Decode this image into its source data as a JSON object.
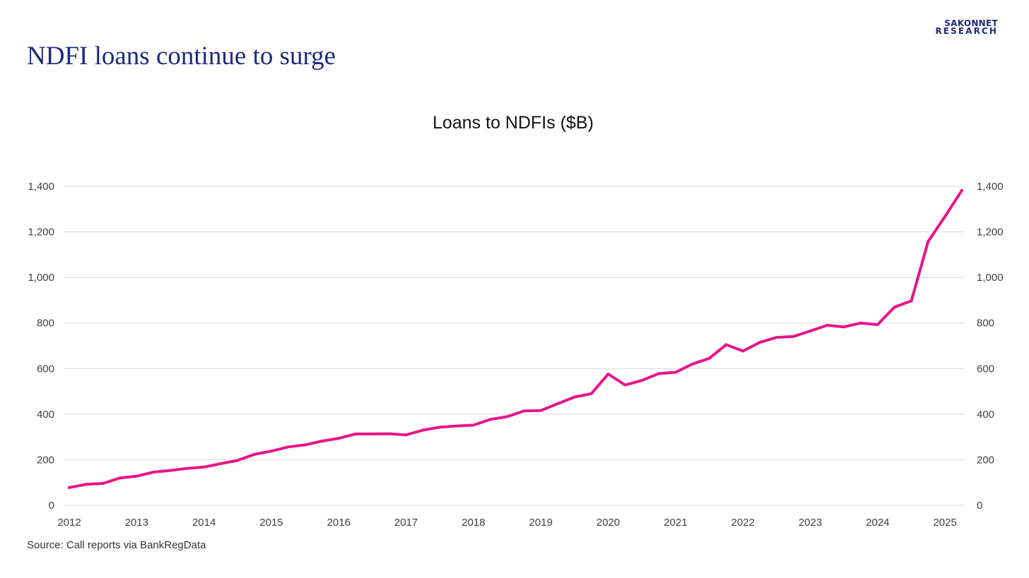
{
  "page": {
    "headline": "NDFI loans continue to surge",
    "logo_line1": "SAKONNET",
    "logo_line2": "RESEARCH",
    "source": "Source: Call reports via BankRegData"
  },
  "colors": {
    "line": "#e6168c",
    "grid": "#d9d9d9",
    "headline": "#1f2a7a",
    "tick_text": "#404040"
  },
  "chart_data": {
    "type": "line",
    "title": "Loans to NDFIs ($B)",
    "xlabel": "",
    "ylabel": "",
    "ylim": [
      0,
      1400
    ],
    "xlim": [
      2012,
      2025.25
    ],
    "y_ticks": [
      0,
      200,
      400,
      600,
      800,
      1000,
      1200,
      1400
    ],
    "y_tick_labels": [
      "0",
      "200",
      "400",
      "600",
      "800",
      "1,000",
      "1,200",
      "1,400"
    ],
    "x_ticks": [
      2012,
      2013,
      2014,
      2015,
      2016,
      2017,
      2018,
      2019,
      2020,
      2021,
      2022,
      2023,
      2024,
      2025
    ],
    "x_tick_labels": [
      "2012",
      "2013",
      "2014",
      "2015",
      "2016",
      "2017",
      "2018",
      "2019",
      "2020",
      "2021",
      "2022",
      "2023",
      "2024",
      "2025"
    ],
    "grid": true,
    "secondary_y_axis": true,
    "series": [
      {
        "name": "Loans to NDFIs ($B)",
        "x": [
          2012,
          2012.25,
          2012.5,
          2012.75,
          2013,
          2013.25,
          2013.5,
          2013.75,
          2014,
          2014.25,
          2014.5,
          2014.75,
          2015,
          2015.25,
          2015.5,
          2015.75,
          2016,
          2016.25,
          2016.5,
          2016.75,
          2017,
          2017.25,
          2017.5,
          2017.75,
          2018,
          2018.25,
          2018.5,
          2018.75,
          2019,
          2019.25,
          2019.5,
          2019.75,
          2020,
          2020.25,
          2020.5,
          2020.75,
          2021,
          2021.25,
          2021.5,
          2021.75,
          2022,
          2022.25,
          2022.5,
          2022.75,
          2023,
          2023.25,
          2023.5,
          2023.75,
          2024,
          2024.25,
          2024.5,
          2024.75,
          2025,
          2025.25
        ],
        "values": [
          78,
          92,
          96,
          120,
          128,
          146,
          153,
          162,
          168,
          183,
          197,
          224,
          238,
          256,
          265,
          282,
          294,
          313,
          313,
          314,
          309,
          330,
          343,
          348,
          352,
          377,
          389,
          414,
          416,
          446,
          475,
          490,
          576,
          528,
          548,
          578,
          584,
          620,
          645,
          705,
          677,
          715,
          737,
          741,
          765,
          790,
          783,
          800,
          793,
          870,
          897,
          1158,
          1268,
          1382
        ]
      }
    ]
  }
}
